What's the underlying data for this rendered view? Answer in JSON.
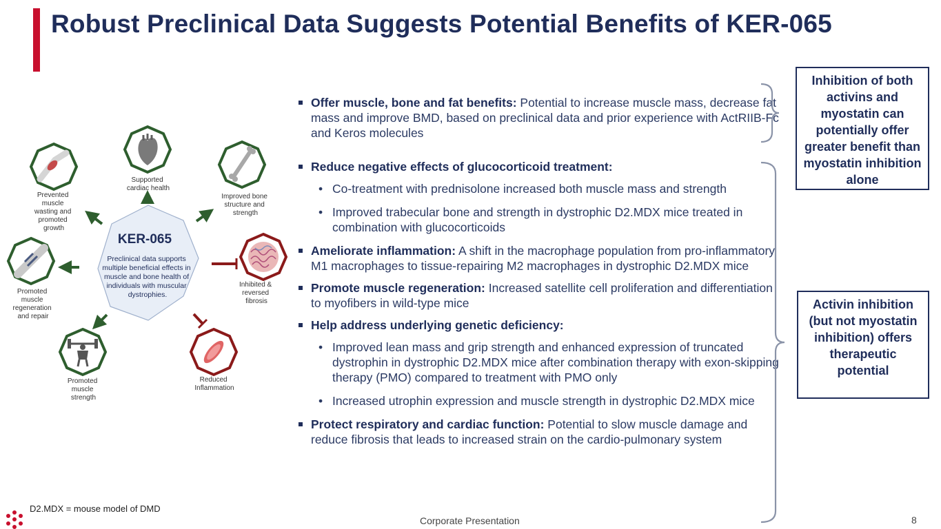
{
  "title": "Robust Preclinical Data Suggests Potential Benefits of KER-065",
  "diagram": {
    "hub_title": "KER-065",
    "hub_text": [
      "Preclinical data supports",
      "multiple beneficial effects in",
      "muscle and bone health of",
      "individuals with muscular",
      "dystrophies."
    ],
    "nodes": {
      "cardiac": [
        "Supported",
        "cardiac health"
      ],
      "bone": [
        "Improved bone",
        "structure and",
        "strength"
      ],
      "fibrosis": [
        "Inhibited &",
        "reversed",
        "fibrosis"
      ],
      "inflammation": [
        "Reduced",
        "Inflammation"
      ],
      "strength": [
        "Promoted",
        "muscle",
        "strength"
      ],
      "regeneration": [
        "Promoted",
        "muscle",
        "regeneration",
        "and repair"
      ],
      "wasting": [
        "Prevented",
        "muscle",
        "wasting and",
        "promoted",
        "growth"
      ]
    },
    "icons": {
      "cardiac": "heart-icon",
      "bone": "bone-icon",
      "fibrosis": "fibrosis-tissue-icon",
      "inflammation": "inflamed-muscle-icon",
      "strength": "weightlifter-icon",
      "regeneration": "muscle-repair-icon",
      "wasting": "arm-muscle-icon"
    },
    "colors": {
      "positive": "#2e5e2e",
      "negative": "#8b1a1a",
      "hub_fill": "#e8eef7",
      "hub_stroke": "#9fb0cc"
    }
  },
  "bullets": {
    "b1": {
      "head": "Offer muscle, bone and fat benefits:",
      "text": " Potential to increase muscle mass, decrease fat mass and improve BMD, based on preclinical data and prior experience with ActRIIB-Fc and Keros molecules"
    },
    "b2": {
      "head": "Reduce negative effects of glucocorticoid treatment:",
      "sub1": "Co-treatment with prednisolone increased both muscle mass and strength",
      "sub2": "Improved trabecular bone and strength in dystrophic D2.MDX mice treated in combination with glucocorticoids"
    },
    "b3": {
      "head": "Ameliorate inflammation:",
      "text": " A shift in the macrophage population from pro-inflammatory M1 macrophages to tissue-repairing M2 macrophages in dystrophic D2.MDX mice"
    },
    "b4": {
      "head": "Promote muscle regeneration:",
      "text": " Increased satellite cell proliferation and differentiation to myofibers in wild-type mice"
    },
    "b5": {
      "head": "Help address underlying genetic deficiency:",
      "sub1": "Improved lean mass and grip strength and enhanced expression of truncated dystrophin in dystrophic D2.MDX mice after combination therapy with exon-skipping therapy (PMO) compared to treatment with PMO only",
      "sub2": "Increased utrophin expression and muscle strength in dystrophic D2.MDX mice"
    },
    "b6": {
      "head": "Protect respiratory and cardiac function:",
      "text": " Potential to slow muscle damage and reduce fibrosis that leads to increased strain on the cardio-pulmonary system"
    }
  },
  "callouts": {
    "c1": "Inhibition of both activins and myostatin can potentially offer greater benefit than myostatin inhibition alone",
    "c2": "Activin inhibition (but not myostatin inhibition) offers therapeutic potential"
  },
  "footnote": "D2.MDX = mouse model of DMD",
  "footer": {
    "center": "Corporate Presentation",
    "page": "8"
  },
  "colors": {
    "accent": "#c8102e",
    "navy": "#1f2d5a",
    "bracket": "#8a93a8"
  }
}
